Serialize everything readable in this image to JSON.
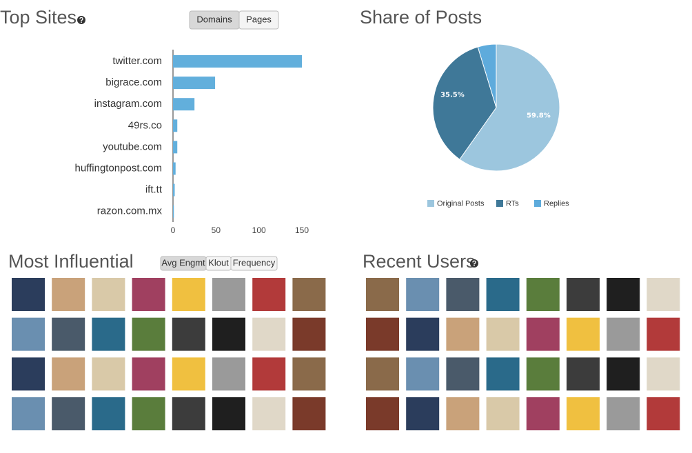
{
  "chart_data": [
    {
      "type": "bar",
      "orientation": "horizontal",
      "title": "Top Sites",
      "toggle": [
        "Domains",
        "Pages"
      ],
      "toggle_active": 0,
      "categories": [
        "twitter.com",
        "bigrace.com",
        "instagram.com",
        "49rs.co",
        "youtube.com",
        "huffingtonpost.com",
        "ift.tt",
        "razon.com.mx"
      ],
      "values": [
        150,
        49,
        25,
        5,
        5,
        3,
        2,
        1
      ],
      "color": "#62afdc",
      "xlim": [
        0,
        160
      ],
      "xticks": [
        0,
        50,
        100,
        150
      ]
    },
    {
      "type": "pie",
      "title": "Share of Posts",
      "categories": [
        "Original Posts",
        "RTs",
        "Replies"
      ],
      "values": [
        59.8,
        35.5,
        4.7
      ],
      "value_labels": [
        "59.8%",
        "35.5%",
        null
      ],
      "colors": [
        "#9cc6de",
        "#3f7898",
        "#5eabdc"
      ],
      "legend": "bottom"
    }
  ],
  "influential": {
    "title": "Most Influential",
    "tabs": [
      "Avg Engmt",
      "Klout",
      "Frequency"
    ],
    "tab_active": 0
  },
  "recent_users": {
    "title": "Recent Users"
  }
}
